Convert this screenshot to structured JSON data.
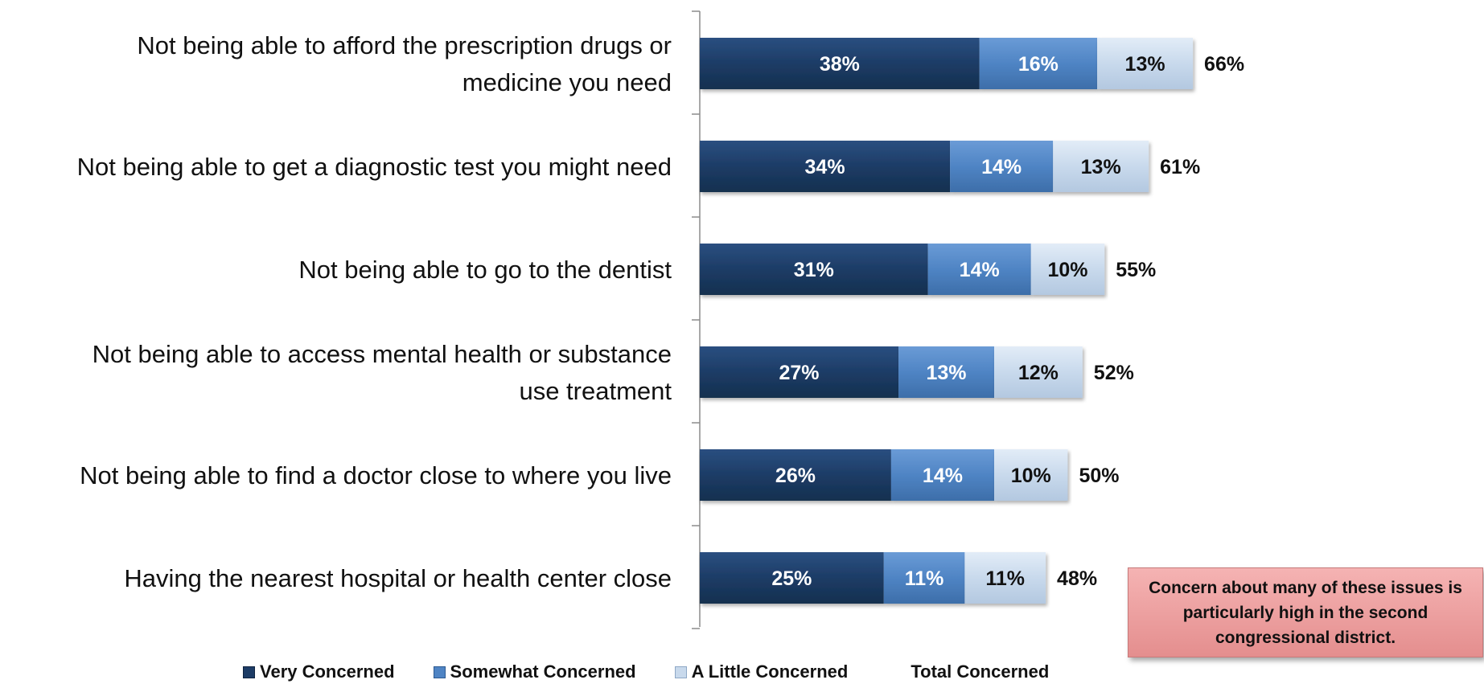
{
  "chart_data": {
    "type": "bar",
    "orientation": "horizontal",
    "stacked": true,
    "categories": [
      "Not being able to afford the prescription drugs or medicine you need",
      "Not being able to get a diagnostic test you might need",
      "Not being able to go to the dentist",
      "Not being able to access mental health or substance use treatment",
      "Not being able to find a doctor close to where you live",
      "Having the nearest hospital or health center close"
    ],
    "series": [
      {
        "name": "Very Concerned",
        "values": [
          38,
          34,
          31,
          27,
          26,
          25
        ],
        "labels": [
          "38%",
          "34%",
          "31%",
          "27%",
          "26%",
          "25%"
        ],
        "color": "#1d3c66"
      },
      {
        "name": "Somewhat Concerned",
        "values": [
          16,
          14,
          14,
          13,
          14,
          11
        ],
        "labels": [
          "16%",
          "14%",
          "14%",
          "13%",
          "14%",
          "11%"
        ],
        "color": "#4f84c4"
      },
      {
        "name": "A Little Concerned",
        "values": [
          13,
          13,
          10,
          12,
          10,
          11
        ],
        "labels": [
          "13%",
          "13%",
          "10%",
          "12%",
          "10%",
          "11%"
        ],
        "color": "#c8d9ec"
      }
    ],
    "totals": {
      "name": "Total Concerned",
      "values": [
        66,
        61,
        55,
        52,
        50,
        48
      ],
      "labels": [
        "66%",
        "61%",
        "55%",
        "52%",
        "50%",
        "48%"
      ]
    },
    "xlim": [
      0,
      100
    ],
    "legend_position": "bottom",
    "grid": false
  },
  "callout": {
    "text": "Concern about many of these issues is particularly high in the second congressional district."
  }
}
